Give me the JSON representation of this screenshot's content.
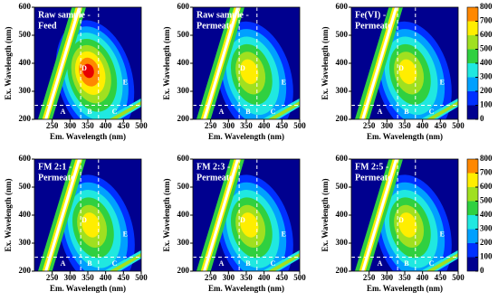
{
  "chart_data": [
    {
      "type": "contour",
      "title": [
        "Raw sample -",
        "Feed"
      ],
      "xlabel": "Em. Wavelength (nm)",
      "ylabel": "Ex. Wavelength (nm)",
      "xlim": [
        200,
        500
      ],
      "xticks": [
        250,
        300,
        350,
        400,
        450,
        500
      ],
      "ylim": [
        200,
        600
      ],
      "yticks": [
        200,
        300,
        400,
        500,
        600
      ],
      "peak": {
        "x": 350,
        "y": 375,
        "value": 800
      },
      "annotations": [
        "A",
        "B",
        "C",
        "D",
        "E"
      ]
    },
    {
      "type": "contour",
      "title": [
        "Raw sample -",
        "Permeate"
      ],
      "xlabel": "Em. Wavelength (nm)",
      "ylabel": "Ex. Wavelength (nm)",
      "xlim": [
        200,
        500
      ],
      "xticks": [
        250,
        300,
        350,
        400,
        450,
        500
      ],
      "ylim": [
        200,
        600
      ],
      "yticks": [
        200,
        300,
        400,
        500,
        600
      ],
      "peak": {
        "x": 355,
        "y": 375,
        "value": 650
      },
      "annotations": [
        "A",
        "B",
        "C",
        "D",
        "E"
      ]
    },
    {
      "type": "contour",
      "title": [
        "Fe(VI) -",
        "Permeate"
      ],
      "xlabel": "Em. Wavelength (nm)",
      "ylabel": "Ex. Wavelength (nm)",
      "xlim": [
        200,
        500
      ],
      "xticks": [
        250,
        300,
        350,
        400,
        450,
        500
      ],
      "ylim": [
        200,
        600
      ],
      "yticks": [
        200,
        300,
        400,
        500,
        600
      ],
      "peak": {
        "x": 355,
        "y": 375,
        "value": 650
      },
      "annotations": [
        "A",
        "B",
        "C",
        "D",
        "E"
      ]
    },
    {
      "type": "contour",
      "title": [
        "FM 2:1 -",
        "Permeate"
      ],
      "xlabel": "Em. Wavelength (nm)",
      "ylabel": "Ex. Wavelength (nm)",
      "xlim": [
        200,
        500
      ],
      "xticks": [
        250,
        300,
        350,
        400,
        450,
        500
      ],
      "ylim": [
        200,
        600
      ],
      "yticks": [
        200,
        300,
        400,
        500,
        600
      ],
      "peak": {
        "x": 355,
        "y": 370,
        "value": 650
      },
      "annotations": [
        "A",
        "B",
        "C",
        "D",
        "E"
      ]
    },
    {
      "type": "contour",
      "title": [
        "FM 2:3 -",
        "Permeate"
      ],
      "xlabel": "Em. Wavelength (nm)",
      "ylabel": "Ex. Wavelength (nm)",
      "xlim": [
        200,
        500
      ],
      "xticks": [
        250,
        300,
        350,
        400,
        450,
        500
      ],
      "ylim": [
        200,
        600
      ],
      "yticks": [
        200,
        300,
        400,
        500,
        600
      ],
      "peak": {
        "x": 355,
        "y": 370,
        "value": 650
      },
      "annotations": [
        "A",
        "B",
        "C",
        "D",
        "E"
      ]
    },
    {
      "type": "contour",
      "title": [
        "FM 2:5 -",
        "Permeate"
      ],
      "xlabel": "Em. Wavelength (nm)",
      "ylabel": "Ex. Wavelength (nm)",
      "xlim": [
        200,
        500
      ],
      "xticks": [
        250,
        300,
        350,
        400,
        450,
        500
      ],
      "ylim": [
        200,
        600
      ],
      "yticks": [
        200,
        300,
        400,
        500,
        600
      ],
      "peak": {
        "x": 355,
        "y": 370,
        "value": 650
      },
      "annotations": [
        "A",
        "B",
        "C",
        "D",
        "E"
      ]
    },
    {
      "type": "colorbar",
      "ticks": [
        0,
        100,
        200,
        300,
        400,
        500,
        600,
        700,
        800
      ],
      "colors": [
        "#00008f",
        "#0030ff",
        "#00a0ff",
        "#20e8e0",
        "#30d040",
        "#a0e020",
        "#ffee00",
        "#ff8800",
        "#e80000"
      ]
    },
    {
      "type": "colorbar",
      "ticks": [
        0,
        100,
        200,
        300,
        400,
        500,
        600,
        700,
        800
      ],
      "colors": [
        "#00008f",
        "#0030ff",
        "#00a0ff",
        "#20e8e0",
        "#30d040",
        "#a0e020",
        "#ffee00",
        "#ff8800",
        "#e80000"
      ]
    }
  ]
}
